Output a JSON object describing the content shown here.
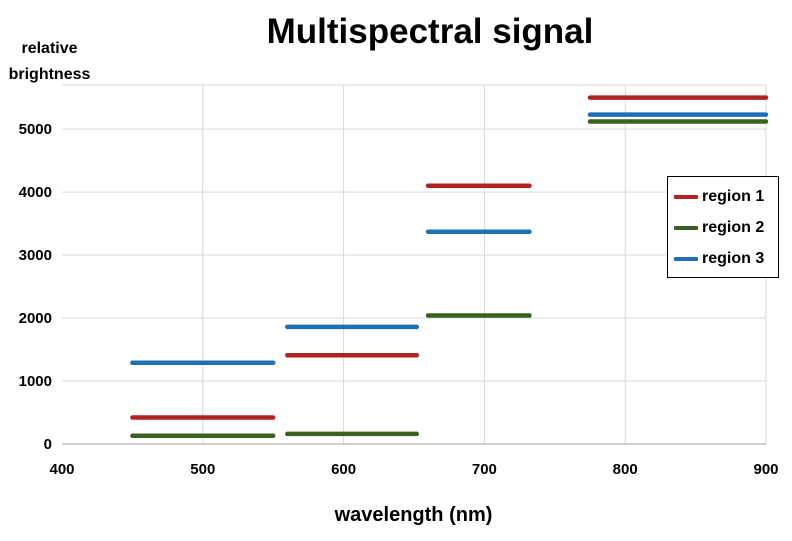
{
  "chart_data": {
    "type": "line",
    "title": "Multispectral signal",
    "xlabel": "wavelength (nm)",
    "ylabel": "relative\nbrightness",
    "xlim": [
      400,
      900
    ],
    "ylim": [
      0,
      5700
    ],
    "xticks": [
      400,
      500,
      600,
      700,
      800,
      900
    ],
    "yticks": [
      0,
      1000,
      2000,
      3000,
      4000,
      5000
    ],
    "grid": true,
    "legend_position": "right",
    "series": [
      {
        "name": "region 1",
        "color": "#b22222",
        "segments": [
          {
            "x": [
              450,
              550
            ],
            "y": 420
          },
          {
            "x": [
              560,
              652
            ],
            "y": 1410
          },
          {
            "x": [
              660,
              732
            ],
            "y": 4100
          },
          {
            "x": [
              775,
              900
            ],
            "y": 5500
          }
        ]
      },
      {
        "name": "region 2",
        "color": "#3b6122",
        "segments": [
          {
            "x": [
              450,
              550
            ],
            "y": 130
          },
          {
            "x": [
              560,
              652
            ],
            "y": 160
          },
          {
            "x": [
              660,
              732
            ],
            "y": 2040
          },
          {
            "x": [
              775,
              900
            ],
            "y": 5120
          }
        ]
      },
      {
        "name": "region 3",
        "color": "#1f6fb5",
        "segments": [
          {
            "x": [
              450,
              550
            ],
            "y": 1290
          },
          {
            "x": [
              560,
              652
            ],
            "y": 1860
          },
          {
            "x": [
              660,
              732
            ],
            "y": 3370
          },
          {
            "x": [
              775,
              900
            ],
            "y": 5230
          }
        ]
      }
    ]
  }
}
